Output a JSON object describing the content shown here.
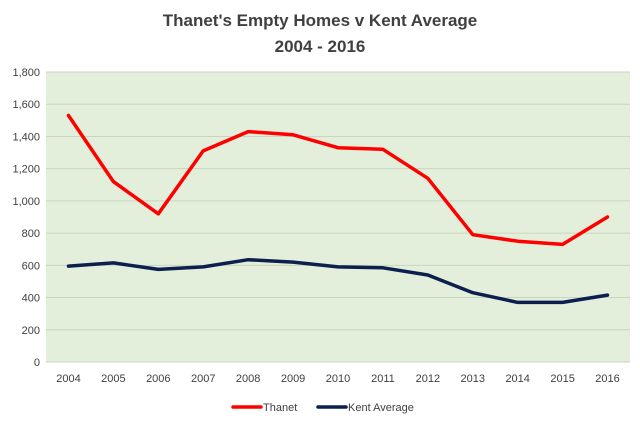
{
  "chart_data": {
    "type": "line",
    "title": [
      "Thanet's  Empty Homes v Kent Average",
      "2004 - 2016"
    ],
    "xlabel": "",
    "ylabel": "",
    "categories": [
      "2004",
      "2005",
      "2006",
      "2007",
      "2008",
      "2009",
      "2010",
      "2011",
      "2012",
      "2013",
      "2014",
      "2015",
      "2016"
    ],
    "ylim": [
      0,
      1800
    ],
    "yticks": [
      0,
      200,
      400,
      600,
      800,
      1000,
      1200,
      1400,
      1600,
      1800
    ],
    "ytick_labels": [
      "0",
      "200",
      "400",
      "600",
      "800",
      "1,000",
      "1,200",
      "1,400",
      "1,600",
      "1,800"
    ],
    "grid": true,
    "legend_position": "bottom",
    "series": [
      {
        "name": "Thanet",
        "color": "#ff0000",
        "values": [
          1530,
          1120,
          920,
          1310,
          1430,
          1410,
          1330,
          1320,
          1140,
          790,
          750,
          730,
          900
        ]
      },
      {
        "name": "Kent Average",
        "color": "#0d1f4f",
        "values": [
          595,
          615,
          575,
          590,
          635,
          620,
          590,
          585,
          540,
          430,
          370,
          370,
          415
        ]
      }
    ],
    "plot_background": "#e3efda",
    "gridline_color": "#c9d6bf"
  }
}
